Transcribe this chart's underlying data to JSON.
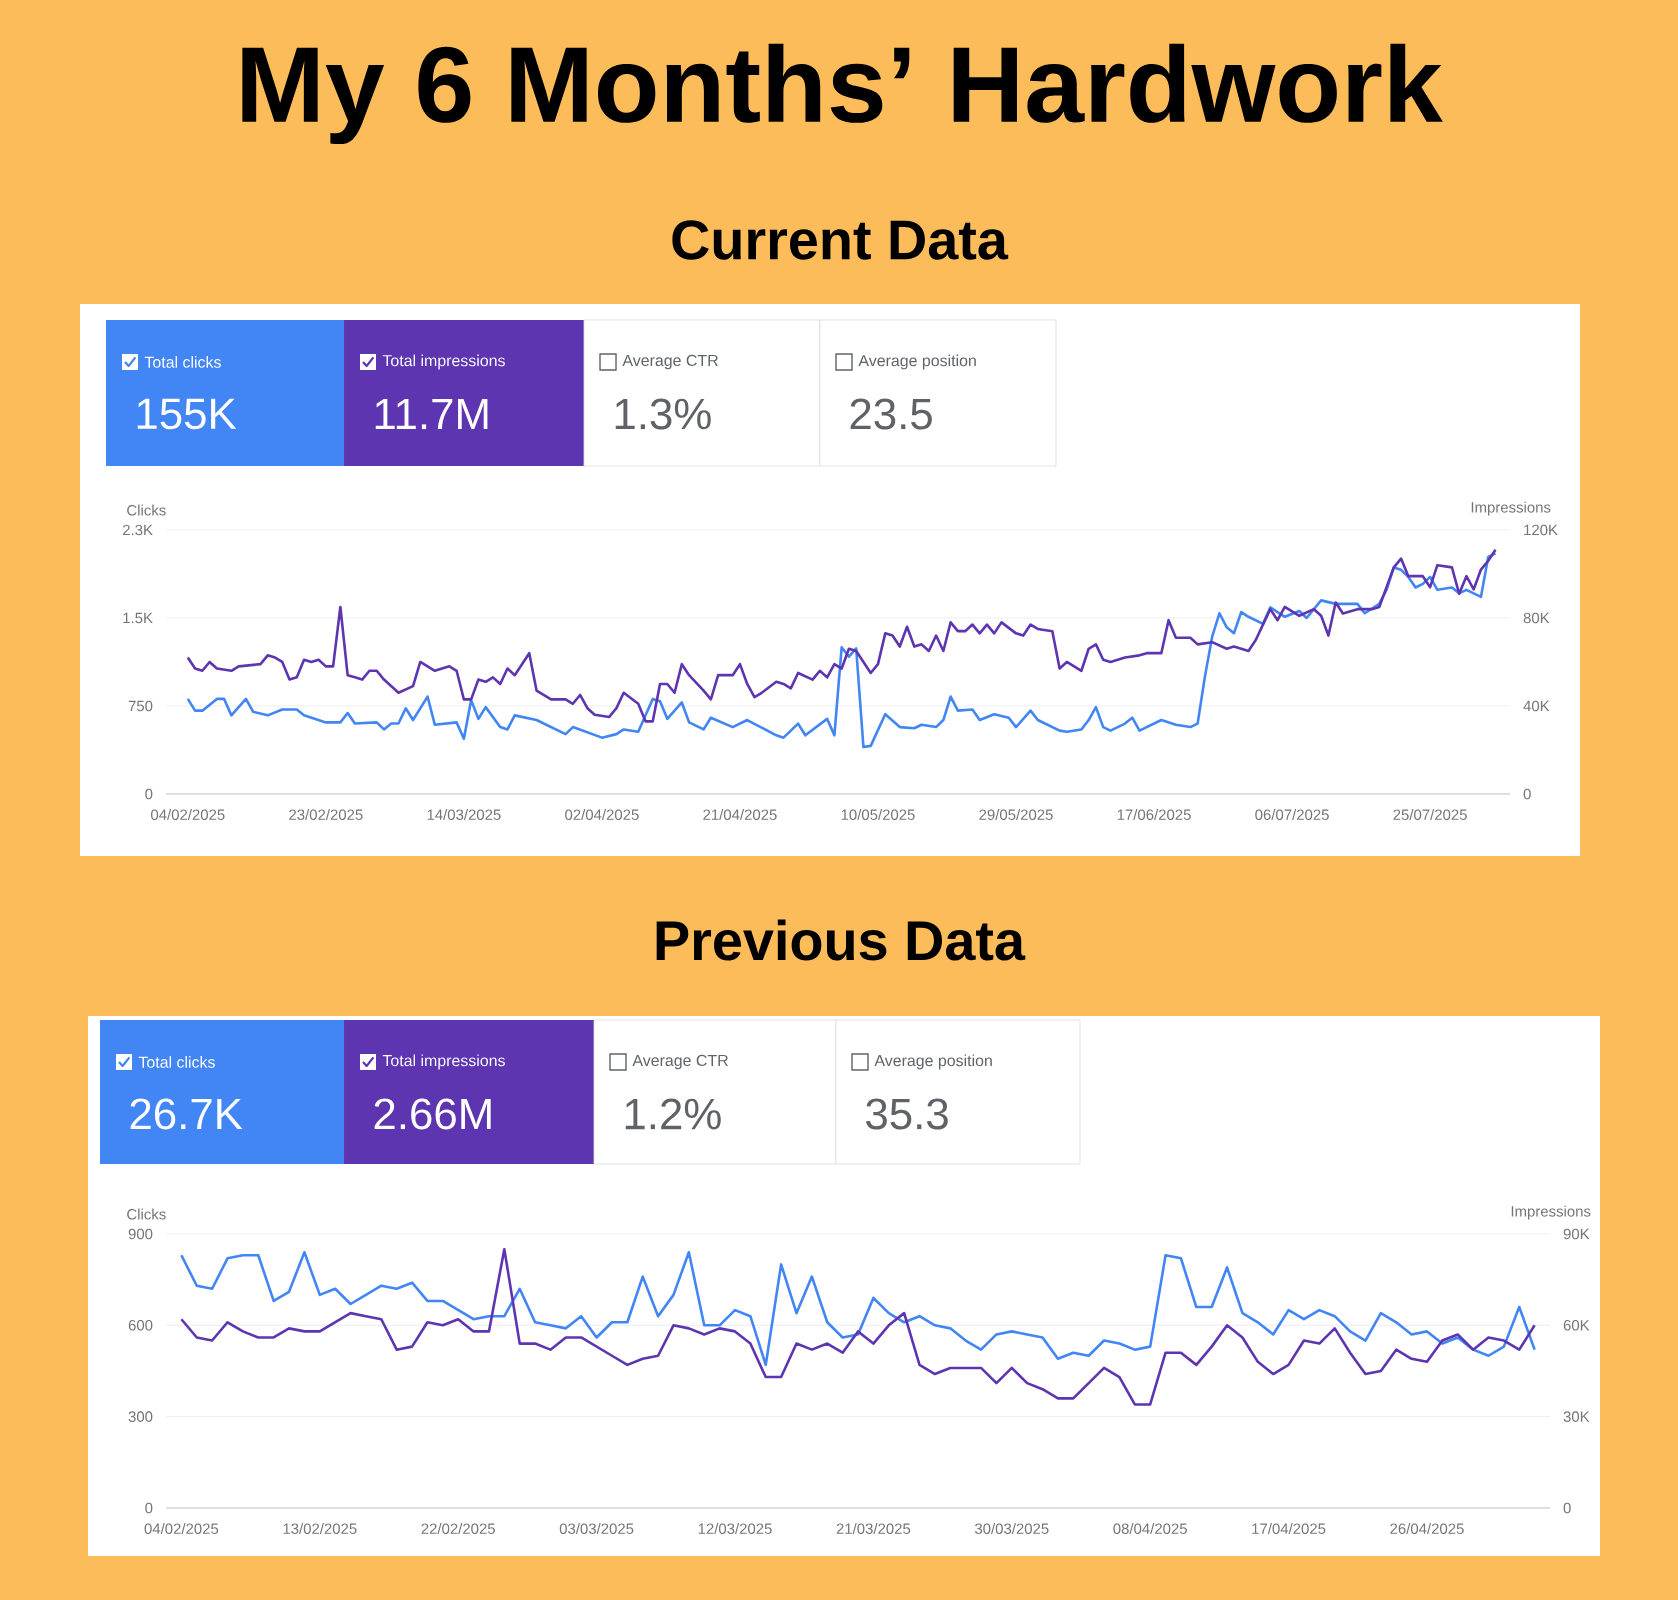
{
  "chart_data": [
    {
      "type": "line",
      "title": "My 6 Months’ Hardwork",
      "subtitle": "Current Data",
      "ylabel": "Clicks",
      "y2label": "Impressions",
      "legend": "top",
      "grid": "y",
      "annotations": [
        "155K",
        "11.7M",
        "Average CTR",
        "1.3%",
        "Average position",
        "23.5"
      ],
      "xlim": [
        "2025-02-01",
        "2025-08-05"
      ],
      "xticks": [
        {
          "value": "2025-02-04",
          "label": "04/02/2025"
        },
        {
          "value": "2025-02-23",
          "label": "23/02/2025"
        },
        {
          "value": "2025-03-14",
          "label": "14/03/2025"
        },
        {
          "value": "2025-04-02",
          "label": "02/04/2025"
        },
        {
          "value": "2025-04-21",
          "label": "21/04/2025"
        },
        {
          "value": "2025-05-10",
          "label": "10/05/2025"
        },
        {
          "value": "2025-05-29",
          "label": "29/05/2025"
        },
        {
          "value": "2025-06-17",
          "label": "17/06/2025"
        },
        {
          "value": "2025-07-06",
          "label": "06/07/2025"
        },
        {
          "value": "2025-07-25",
          "label": "25/07/2025"
        }
      ],
      "ylim": [
        0,
        2250
      ],
      "yticks": [
        0,
        750,
        {
          "value": 1500,
          "label": "1.5K"
        },
        {
          "value": 2250,
          "label": "2.3K"
        }
      ],
      "y2lim": [
        0,
        120000
      ],
      "y2ticks": [
        0,
        {
          "value": 40000,
          "label": "40K"
        },
        {
          "value": 80000,
          "label": "80K"
        },
        {
          "value": 120000,
          "label": "120K"
        }
      ],
      "series": [
        {
          "name": "Total clicks",
          "color": "#4285f4",
          "x": [
            "2025-02-04",
            "2025-02-05",
            "2025-02-06",
            "2025-02-08",
            "2025-02-09",
            "2025-02-10",
            "2025-02-12",
            "2025-02-13",
            "2025-02-15",
            "2025-02-17",
            "2025-02-19",
            "2025-02-20",
            "2025-02-23",
            "2025-02-25",
            "2025-02-26",
            "2025-02-27",
            "2025-03-02",
            "2025-03-03",
            "2025-03-04",
            "2025-03-05",
            "2025-03-06",
            "2025-03-07",
            "2025-03-09",
            "2025-03-10",
            "2025-03-13",
            "2025-03-14",
            "2025-03-15",
            "2025-03-16",
            "2025-03-17",
            "2025-03-19",
            "2025-03-20",
            "2025-03-21",
            "2025-03-24",
            "2025-03-28",
            "2025-03-29",
            "2025-04-02",
            "2025-04-04",
            "2025-04-05",
            "2025-04-07",
            "2025-04-09",
            "2025-04-10",
            "2025-04-11",
            "2025-04-13",
            "2025-04-14",
            "2025-04-16",
            "2025-04-17",
            "2025-04-20",
            "2025-04-22",
            "2025-04-26",
            "2025-04-27",
            "2025-04-29",
            "2025-04-30",
            "2025-05-03",
            "2025-05-04",
            "2025-05-05",
            "2025-05-06",
            "2025-05-07",
            "2025-05-08",
            "2025-05-09",
            "2025-05-11",
            "2025-05-13",
            "2025-05-15",
            "2025-05-16",
            "2025-05-18",
            "2025-05-19",
            "2025-05-20",
            "2025-05-21",
            "2025-05-23",
            "2025-05-24",
            "2025-05-26",
            "2025-05-28",
            "2025-05-29",
            "2025-05-31",
            "2025-06-01",
            "2025-06-04",
            "2025-06-05",
            "2025-06-07",
            "2025-06-08",
            "2025-06-09",
            "2025-06-10",
            "2025-06-11",
            "2025-06-13",
            "2025-06-14",
            "2025-06-15",
            "2025-06-18",
            "2025-06-20",
            "2025-06-22",
            "2025-06-23",
            "2025-06-24",
            "2025-06-25",
            "2025-06-26",
            "2025-06-27",
            "2025-06-28",
            "2025-06-29",
            "2025-06-30",
            "2025-07-02",
            "2025-07-03",
            "2025-07-05",
            "2025-07-07",
            "2025-07-08",
            "2025-07-10",
            "2025-07-12",
            "2025-07-15",
            "2025-07-16",
            "2025-07-18",
            "2025-07-19",
            "2025-07-20",
            "2025-07-21",
            "2025-07-22",
            "2025-07-23",
            "2025-07-24",
            "2025-07-25",
            "2025-07-26",
            "2025-07-28",
            "2025-07-29",
            "2025-07-30",
            "2025-07-31",
            "2025-08-01",
            "2025-08-02",
            "2025-08-03"
          ],
          "values": [
            810,
            710,
            710,
            810,
            810,
            670,
            810,
            700,
            670,
            720,
            720,
            670,
            610,
            610,
            690,
            600,
            610,
            550,
            600,
            600,
            730,
            630,
            830,
            590,
            610,
            470,
            800,
            640,
            740,
            570,
            550,
            670,
            630,
            510,
            570,
            480,
            510,
            550,
            530,
            810,
            790,
            640,
            780,
            610,
            550,
            650,
            570,
            630,
            500,
            480,
            600,
            500,
            640,
            500,
            1250,
            1170,
            1240,
            400,
            410,
            680,
            570,
            560,
            590,
            570,
            630,
            830,
            710,
            720,
            630,
            680,
            650,
            570,
            710,
            630,
            540,
            530,
            550,
            630,
            740,
            570,
            540,
            600,
            650,
            540,
            630,
            590,
            570,
            600,
            1000,
            1340,
            1540,
            1420,
            1370,
            1550,
            1510,
            1450,
            1590,
            1510,
            1560,
            1500,
            1650,
            1620,
            1620,
            1540,
            1620,
            1740,
            1930,
            1910,
            1850,
            1760,
            1790,
            1850,
            1740,
            1760,
            1710,
            1740,
            1710,
            1680,
            2020,
            2050
          ]
        },
        {
          "name": "Total impressions",
          "color": "#5e35b1",
          "axis": "y2",
          "x": [
            "2025-02-04",
            "2025-02-05",
            "2025-02-06",
            "2025-02-07",
            "2025-02-08",
            "2025-02-10",
            "2025-02-11",
            "2025-02-14",
            "2025-02-15",
            "2025-02-16",
            "2025-02-17",
            "2025-02-18",
            "2025-02-19",
            "2025-02-20",
            "2025-02-21",
            "2025-02-22",
            "2025-02-23",
            "2025-02-24",
            "2025-02-25",
            "2025-02-26",
            "2025-02-27",
            "2025-02-28",
            "2025-03-01",
            "2025-03-02",
            "2025-03-03",
            "2025-03-05",
            "2025-03-07",
            "2025-03-08",
            "2025-03-09",
            "2025-03-10",
            "2025-03-12",
            "2025-03-13",
            "2025-03-14",
            "2025-03-15",
            "2025-03-16",
            "2025-03-17",
            "2025-03-18",
            "2025-03-19",
            "2025-03-20",
            "2025-03-21",
            "2025-03-22",
            "2025-03-23",
            "2025-03-24",
            "2025-03-26",
            "2025-03-28",
            "2025-03-29",
            "2025-03-30",
            "2025-03-31",
            "2025-04-01",
            "2025-04-03",
            "2025-04-04",
            "2025-04-05",
            "2025-04-07",
            "2025-04-08",
            "2025-04-09",
            "2025-04-10",
            "2025-04-11",
            "2025-04-12",
            "2025-04-13",
            "2025-04-14",
            "2025-04-16",
            "2025-04-17",
            "2025-04-18",
            "2025-04-20",
            "2025-04-21",
            "2025-04-22",
            "2025-04-23",
            "2025-04-24",
            "2025-04-26",
            "2025-04-27",
            "2025-04-28",
            "2025-04-29",
            "2025-05-01",
            "2025-05-02",
            "2025-05-03",
            "2025-05-04",
            "2025-05-05",
            "2025-05-06",
            "2025-05-07",
            "2025-05-08",
            "2025-05-09",
            "2025-05-10",
            "2025-05-11",
            "2025-05-12",
            "2025-05-13",
            "2025-05-14",
            "2025-05-15",
            "2025-05-16",
            "2025-05-17",
            "2025-05-18",
            "2025-05-19",
            "2025-05-20",
            "2025-05-21",
            "2025-05-22",
            "2025-05-23",
            "2025-05-24",
            "2025-05-25",
            "2025-05-26",
            "2025-05-27",
            "2025-05-29",
            "2025-05-30",
            "2025-05-31",
            "2025-06-01",
            "2025-06-03",
            "2025-06-04",
            "2025-06-05",
            "2025-06-07",
            "2025-06-08",
            "2025-06-09",
            "2025-06-10",
            "2025-06-11",
            "2025-06-13",
            "2025-06-15",
            "2025-06-16",
            "2025-06-18",
            "2025-06-19",
            "2025-06-20",
            "2025-06-22",
            "2025-06-23",
            "2025-06-25",
            "2025-06-27",
            "2025-06-28",
            "2025-06-30",
            "2025-07-01",
            "2025-07-03",
            "2025-07-04",
            "2025-07-05",
            "2025-07-07",
            "2025-07-09",
            "2025-07-10",
            "2025-07-11",
            "2025-07-12",
            "2025-07-13",
            "2025-07-15",
            "2025-07-17",
            "2025-07-18",
            "2025-07-20",
            "2025-07-21",
            "2025-07-22",
            "2025-07-24",
            "2025-07-25",
            "2025-07-26",
            "2025-07-28",
            "2025-07-29",
            "2025-07-30",
            "2025-07-31",
            "2025-08-01",
            "2025-08-02",
            "2025-08-03"
          ],
          "values": [
            62000,
            57000,
            56000,
            60000,
            57000,
            56000,
            58000,
            59000,
            63000,
            62000,
            60000,
            52000,
            53000,
            61000,
            60000,
            61000,
            58000,
            58000,
            85000,
            54000,
            53000,
            52000,
            56000,
            56000,
            52000,
            46000,
            49000,
            60000,
            58000,
            56000,
            58000,
            56000,
            43000,
            43000,
            52000,
            51000,
            53000,
            50000,
            57000,
            54000,
            59000,
            64000,
            47000,
            43000,
            43000,
            41000,
            45000,
            39000,
            36000,
            35000,
            39000,
            46000,
            41000,
            33000,
            33000,
            50000,
            50000,
            46000,
            59000,
            54000,
            47000,
            43000,
            54000,
            54000,
            59000,
            50000,
            44000,
            46000,
            51000,
            50000,
            48000,
            55000,
            52000,
            56000,
            53000,
            59000,
            57000,
            66000,
            65000,
            60000,
            55000,
            59000,
            73000,
            72000,
            67000,
            76000,
            67000,
            68000,
            65000,
            72000,
            65000,
            78000,
            74000,
            74000,
            77000,
            73000,
            77000,
            73000,
            78000,
            73000,
            72000,
            77000,
            75000,
            74000,
            57000,
            60000,
            56000,
            66000,
            68000,
            61000,
            60000,
            62000,
            63000,
            64000,
            64000,
            79000,
            71000,
            71000,
            68000,
            69000,
            66000,
            67000,
            65000,
            70000,
            84000,
            79000,
            85000,
            81000,
            84000,
            81000,
            72000,
            87000,
            82000,
            84000,
            84000,
            85000,
            103000,
            107000,
            99000,
            99000,
            94000,
            104000,
            103000,
            91000,
            99000,
            93000,
            102000,
            106000,
            111000
          ]
        }
      ]
    },
    {
      "type": "line",
      "title": "Previous Data",
      "ylabel": "Clicks",
      "y2label": "Impressions",
      "legend": "top",
      "grid": "y",
      "annotations": [
        "26.7K",
        "2.66M",
        "Average CTR",
        "1.2%",
        "Average position",
        "35.3"
      ],
      "xlim": [
        "2025-02-03",
        "2025-05-04"
      ],
      "xticks": [
        {
          "value": "2025-02-04",
          "label": "04/02/2025"
        },
        {
          "value": "2025-02-13",
          "label": "13/02/2025"
        },
        {
          "value": "2025-02-22",
          "label": "22/02/2025"
        },
        {
          "value": "2025-03-03",
          "label": "03/03/2025"
        },
        {
          "value": "2025-03-12",
          "label": "12/03/2025"
        },
        {
          "value": "2025-03-21",
          "label": "21/03/2025"
        },
        {
          "value": "2025-03-30",
          "label": "30/03/2025"
        },
        {
          "value": "2025-04-08",
          "label": "08/04/2025"
        },
        {
          "value": "2025-04-17",
          "label": "17/04/2025"
        },
        {
          "value": "2025-04-26",
          "label": "26/04/2025"
        }
      ],
      "ylim": [
        0,
        900
      ],
      "yticks": [
        0,
        300,
        600,
        900
      ],
      "y2lim": [
        0,
        90000
      ],
      "y2ticks": [
        0,
        {
          "value": 30000,
          "label": "30K"
        },
        {
          "value": 60000,
          "label": "60K"
        },
        {
          "value": 90000,
          "label": "90K"
        }
      ],
      "x": [
        "2025-02-04",
        "2025-02-05",
        "2025-02-06",
        "2025-02-07",
        "2025-02-08",
        "2025-02-09",
        "2025-02-10",
        "2025-02-11",
        "2025-02-12",
        "2025-02-13",
        "2025-02-14",
        "2025-02-15",
        "2025-02-16",
        "2025-02-17",
        "2025-02-18",
        "2025-02-19",
        "2025-02-20",
        "2025-02-21",
        "2025-02-22",
        "2025-02-23",
        "2025-02-24",
        "2025-02-25",
        "2025-02-26",
        "2025-02-27",
        "2025-02-28",
        "2025-03-01",
        "2025-03-02",
        "2025-03-03",
        "2025-03-04",
        "2025-03-05",
        "2025-03-06",
        "2025-03-07",
        "2025-03-08",
        "2025-03-09",
        "2025-03-10",
        "2025-03-11",
        "2025-03-12",
        "2025-03-13",
        "2025-03-14",
        "2025-03-15",
        "2025-03-16",
        "2025-03-17",
        "2025-03-18",
        "2025-03-19",
        "2025-03-20",
        "2025-03-21",
        "2025-03-22",
        "2025-03-23",
        "2025-03-24",
        "2025-03-25",
        "2025-03-26",
        "2025-03-27",
        "2025-03-28",
        "2025-03-29",
        "2025-03-30",
        "2025-03-31",
        "2025-04-01",
        "2025-04-02",
        "2025-04-03",
        "2025-04-04",
        "2025-04-05",
        "2025-04-06",
        "2025-04-07",
        "2025-04-08",
        "2025-04-09",
        "2025-04-10",
        "2025-04-11",
        "2025-04-12",
        "2025-04-13",
        "2025-04-14",
        "2025-04-15",
        "2025-04-16",
        "2025-04-17",
        "2025-04-18",
        "2025-04-19",
        "2025-04-20",
        "2025-04-21",
        "2025-04-22",
        "2025-04-23",
        "2025-04-24",
        "2025-04-25",
        "2025-04-26",
        "2025-04-27",
        "2025-04-28",
        "2025-04-29",
        "2025-04-30",
        "2025-05-01",
        "2025-05-02",
        "2025-05-03"
      ],
      "series": [
        {
          "name": "Total clicks",
          "color": "#4285f4",
          "values": [
            830,
            730,
            720,
            820,
            830,
            830,
            680,
            710,
            840,
            700,
            720,
            670,
            700,
            730,
            720,
            740,
            680,
            680,
            650,
            620,
            630,
            630,
            720,
            610,
            600,
            590,
            630,
            560,
            610,
            610,
            760,
            630,
            700,
            840,
            600,
            600,
            650,
            630,
            470,
            800,
            640,
            760,
            610,
            560,
            570,
            690,
            640,
            610,
            630,
            600,
            590,
            550,
            520,
            570,
            580,
            570,
            560,
            490,
            510,
            500,
            550,
            540,
            520,
            530,
            830,
            820,
            660,
            660,
            790,
            640,
            610,
            570,
            650,
            620,
            650,
            630,
            580,
            550,
            640,
            610,
            570,
            580,
            540,
            560,
            520,
            500,
            530,
            660,
            520
          ]
        },
        {
          "name": "Total impressions",
          "color": "#5e35b1",
          "axis": "y2",
          "values": [
            62000,
            56000,
            55000,
            61000,
            58000,
            56000,
            56000,
            59000,
            58000,
            58000,
            61000,
            64000,
            63000,
            62000,
            52000,
            53000,
            61000,
            60000,
            62000,
            58000,
            58000,
            85000,
            54000,
            54000,
            52000,
            56000,
            56000,
            53000,
            50000,
            47000,
            49000,
            50000,
            60000,
            59000,
            57000,
            59000,
            58000,
            54000,
            43000,
            43000,
            54000,
            52000,
            54000,
            51000,
            58000,
            54000,
            60000,
            64000,
            47000,
            44000,
            46000,
            46000,
            46000,
            41000,
            46000,
            41000,
            39000,
            36000,
            36000,
            41000,
            46000,
            43000,
            34000,
            34000,
            51000,
            51000,
            47000,
            53000,
            60000,
            56000,
            48000,
            44000,
            47000,
            55000,
            54000,
            59000,
            51000,
            44000,
            45000,
            52000,
            49000,
            48000,
            55000,
            57000,
            52000,
            56000,
            55000,
            52000,
            60000
          ]
        }
      ]
    }
  ]
}
